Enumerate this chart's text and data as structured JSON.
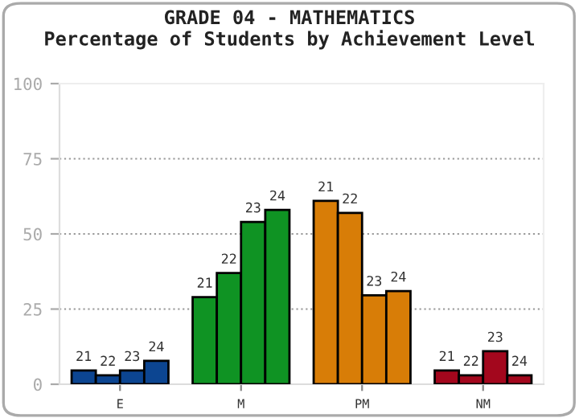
{
  "chart_data": {
    "type": "bar",
    "title": "GRADE 04 - MATHEMATICS",
    "subtitle": "Percentage of Students by Achievement Level",
    "categories": [
      "E",
      "M",
      "PM",
      "NM"
    ],
    "series": [
      {
        "name": "21",
        "colors": [
          "#0c4591",
          "#0f9323",
          "#d87d07",
          "#a3071d"
        ],
        "values": [
          4.6,
          29,
          61,
          4.6
        ]
      },
      {
        "name": "22",
        "colors": [
          "#0c4591",
          "#0f9323",
          "#d87d07",
          "#a3071d"
        ],
        "values": [
          3,
          37,
          57,
          3
        ]
      },
      {
        "name": "23",
        "colors": [
          "#0c4591",
          "#0f9323",
          "#d87d07",
          "#a3071d"
        ],
        "values": [
          4.6,
          54,
          29.6,
          11
        ]
      },
      {
        "name": "24",
        "colors": [
          "#0c4591",
          "#0f9323",
          "#d87d07",
          "#a3071d"
        ],
        "values": [
          7.8,
          58,
          31,
          3
        ]
      }
    ],
    "ylim": [
      0,
      100
    ],
    "yticks": [
      0,
      25,
      50,
      75,
      100
    ],
    "grid": "y",
    "legend": false
  }
}
